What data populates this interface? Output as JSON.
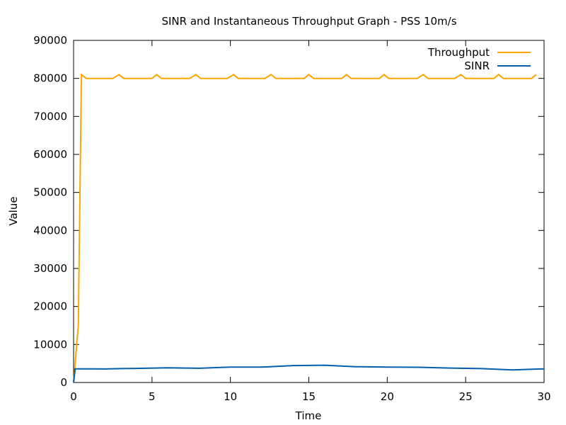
{
  "chart_data": {
    "type": "line",
    "title": "SINR and Instantaneous Throughput Graph - PSS 10m/s",
    "xlabel": "Time",
    "ylabel": "Value",
    "xlim": [
      0,
      30
    ],
    "ylim": [
      0,
      90000
    ],
    "x_ticks": [
      0,
      5,
      10,
      15,
      20,
      25,
      30
    ],
    "y_ticks": [
      0,
      10000,
      20000,
      30000,
      40000,
      50000,
      60000,
      70000,
      80000,
      90000
    ],
    "grid": false,
    "legend_position": "top-right",
    "series": [
      {
        "name": "Throughput",
        "color": "#ffa500",
        "points": [
          [
            0,
            0
          ],
          [
            0.1,
            5000
          ],
          [
            0.2,
            10000
          ],
          [
            0.3,
            15000
          ],
          [
            0.5,
            81000
          ],
          [
            0.8,
            80000
          ],
          [
            1.0,
            80000
          ],
          [
            2.5,
            80000
          ],
          [
            2.9,
            81000
          ],
          [
            3.2,
            80000
          ],
          [
            5.0,
            80000
          ],
          [
            5.3,
            81000
          ],
          [
            5.6,
            80000
          ],
          [
            7.4,
            80000
          ],
          [
            7.8,
            81000
          ],
          [
            8.1,
            80000
          ],
          [
            9.8,
            80000
          ],
          [
            10.2,
            81000
          ],
          [
            10.5,
            80000
          ],
          [
            12.2,
            80000
          ],
          [
            12.6,
            81000
          ],
          [
            12.9,
            80000
          ],
          [
            14.7,
            80000
          ],
          [
            15.0,
            81000
          ],
          [
            15.3,
            80000
          ],
          [
            17.1,
            80000
          ],
          [
            17.4,
            81000
          ],
          [
            17.7,
            80000
          ],
          [
            19.5,
            80000
          ],
          [
            19.8,
            81000
          ],
          [
            20.1,
            80000
          ],
          [
            21.9,
            80000
          ],
          [
            22.3,
            81000
          ],
          [
            22.6,
            80000
          ],
          [
            24.3,
            80000
          ],
          [
            24.7,
            81000
          ],
          [
            25.0,
            80000
          ],
          [
            26.8,
            80000
          ],
          [
            27.1,
            81000
          ],
          [
            27.4,
            80000
          ],
          [
            29.2,
            80000
          ],
          [
            29.5,
            81000
          ]
        ]
      },
      {
        "name": "SINR",
        "color": "#0060ad",
        "points": [
          [
            0,
            0
          ],
          [
            0.1,
            3600
          ],
          [
            1,
            3600
          ],
          [
            2,
            3550
          ],
          [
            3,
            3650
          ],
          [
            4,
            3700
          ],
          [
            6,
            3850
          ],
          [
            8,
            3750
          ],
          [
            10,
            4050
          ],
          [
            12,
            4050
          ],
          [
            14,
            4450
          ],
          [
            16,
            4550
          ],
          [
            18,
            4150
          ],
          [
            20,
            4050
          ],
          [
            22,
            4000
          ],
          [
            24,
            3800
          ],
          [
            26,
            3650
          ],
          [
            28,
            3300
          ],
          [
            30,
            3600
          ]
        ]
      }
    ]
  }
}
